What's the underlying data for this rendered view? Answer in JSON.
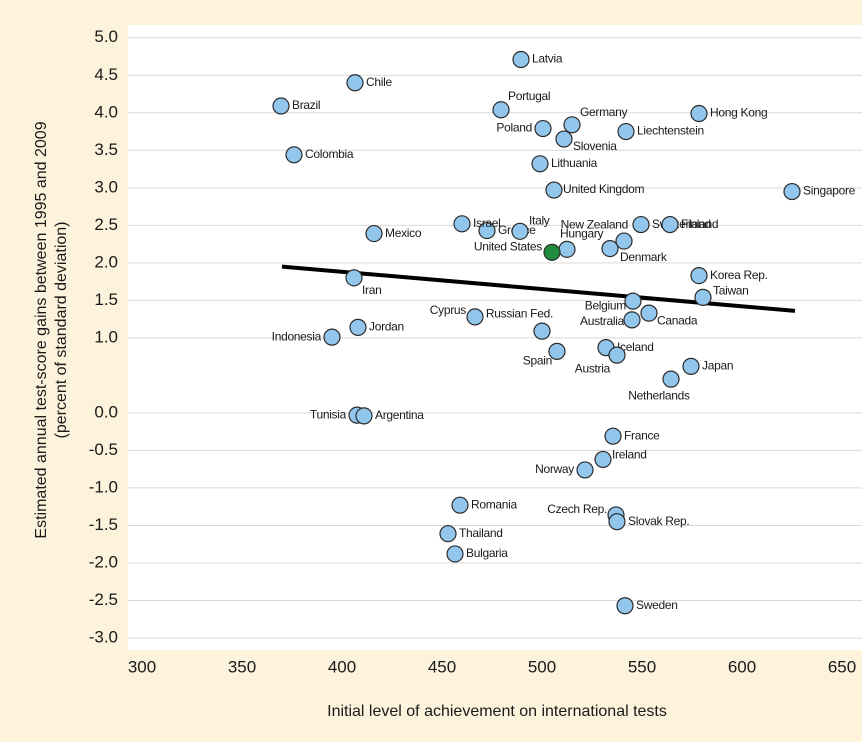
{
  "chart_data": {
    "type": "scatter",
    "x_label": "Initial level of achievement on international tests",
    "y_label": [
      "Estimated annual test-score gains between 1995 and 2009",
      "(percent of standard deviation)"
    ],
    "labels": [
      "Latvia",
      "Chile",
      "Brazil",
      "Portugal",
      "Hong Kong",
      "Germany",
      "Poland",
      "Liechtenstein",
      "Slovenia",
      "Colombia",
      "Lithuania",
      "United Kingdom",
      "Singapore",
      "Switzerland",
      "Greece",
      "Mexico",
      "Israel",
      "Italy",
      "Finland",
      "New Zealand",
      "Hungary",
      "United States",
      "Denmark",
      "Iran",
      "Korea Rep.",
      "Taiwan",
      "Belgium",
      "Australia",
      "Canada",
      "Cyprus",
      "Jordan",
      "Indonesia",
      "Russian Fed.",
      "Spain",
      "Iceland",
      "Austria",
      "Japan",
      "Netherlands",
      "Tunisia",
      "Argentina",
      "France",
      "Ireland",
      "Norway",
      "Romania",
      "Czech Rep.",
      "Slovak Rep.",
      "Thailand",
      "Bulgaria",
      "Sweden"
    ],
    "x": [
      489.5,
      406.5,
      369.5,
      479.5,
      578.5,
      515,
      500.5,
      542,
      511,
      376,
      499,
      506,
      625,
      549.5,
      472.5,
      416,
      460,
      489,
      564,
      541,
      512.5,
      505,
      534,
      406,
      578.5,
      580.5,
      545.5,
      545,
      553.5,
      466.5,
      408,
      395,
      500,
      507.5,
      532,
      537.5,
      574.5,
      564.5,
      407.5,
      411,
      535.5,
      530.5,
      521.5,
      459,
      537,
      537.5,
      453,
      456.5,
      541.5
    ],
    "y": [
      4.71,
      4.4,
      4.09,
      4.04,
      3.99,
      3.84,
      3.79,
      3.75,
      3.65,
      3.44,
      3.32,
      2.97,
      2.95,
      2.51,
      2.43,
      2.39,
      2.52,
      2.42,
      2.51,
      2.29,
      2.18,
      2.14,
      2.19,
      1.8,
      1.83,
      1.54,
      1.49,
      1.24,
      1.33,
      1.28,
      1.14,
      1.01,
      1.09,
      0.82,
      0.87,
      0.77,
      0.62,
      0.45,
      -0.03,
      -0.04,
      -0.31,
      -0.62,
      -0.76,
      -1.23,
      -1.36,
      -1.45,
      -1.61,
      -1.88,
      -2.57
    ],
    "color": "#92c6ec",
    "highlight_index": 21,
    "highlight_color": "#1f8b3b",
    "trend_line": {
      "x": [
        370,
        626.5
      ],
      "y": [
        1.95,
        1.36
      ],
      "color": "#000000"
    },
    "xlim": [
      293,
      660
    ],
    "xticks": [
      300,
      350,
      400,
      450,
      500,
      550,
      600,
      650
    ],
    "ylim": [
      -3.16,
      5.17
    ],
    "yticks": [
      {
        "value": 5,
        "label": "5.0"
      },
      4.5,
      {
        "value": 4,
        "label": "4.0"
      },
      3.5,
      {
        "value": 3,
        "label": "3.0"
      },
      2.5,
      {
        "value": 2,
        "label": "2.0"
      },
      1.5,
      {
        "value": 1,
        "label": "1.0"
      },
      {
        "value": 0,
        "label": "0.0"
      },
      -0.5,
      {
        "value": -1,
        "label": "-1.0"
      },
      -1.5,
      {
        "value": -2,
        "label": "-2.0"
      },
      -2.5,
      {
        "value": -3,
        "label": "-3.0"
      }
    ],
    "grid": true
  }
}
